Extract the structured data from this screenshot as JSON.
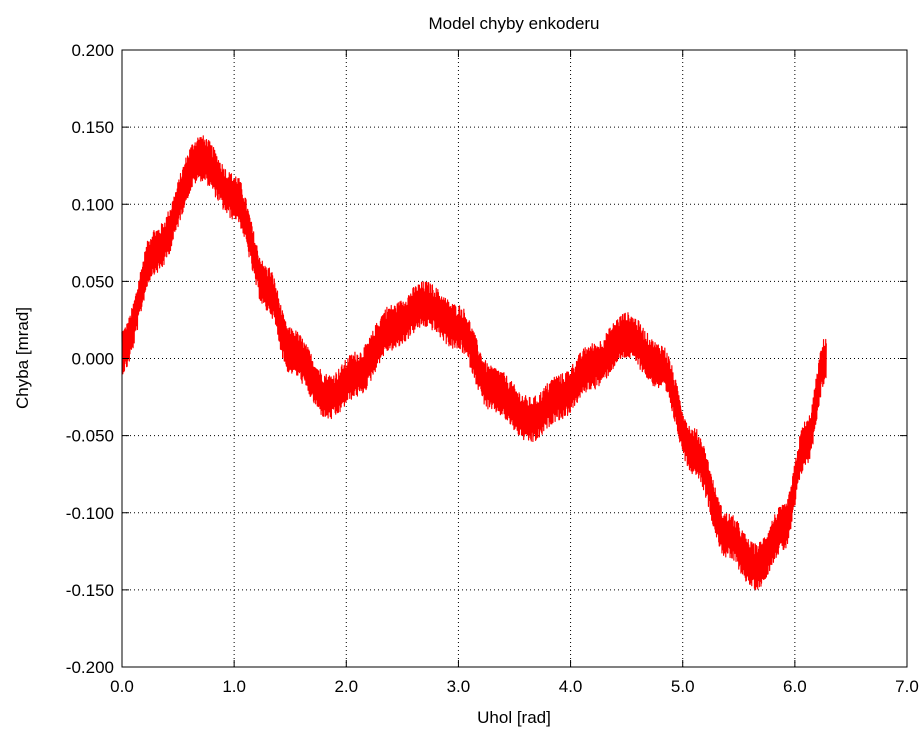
{
  "chart_data": {
    "type": "line",
    "title": "Model chyby enkoderu",
    "xlabel": "Uhol [rad]",
    "ylabel": "Chyba [mrad]",
    "xlim": [
      0,
      7
    ],
    "ylim": [
      -0.2,
      0.2
    ],
    "grid": true,
    "x_tick_labels": [
      "0.0",
      "1.0",
      "2.0",
      "3.0",
      "4.0",
      "5.0",
      "6.0",
      "7.0"
    ],
    "y_tick_labels": [
      "0.200",
      "0.150",
      "0.100",
      "0.050",
      "0.000",
      "-0.050",
      "-0.100",
      "-0.150",
      "-0.200"
    ],
    "series": [
      {
        "color": "#ff0000",
        "x": [
          0.0,
          0.3,
          0.7,
          1.0,
          1.3,
          1.5,
          1.85,
          2.1,
          2.4,
          2.7,
          3.0,
          3.3,
          3.65,
          3.9,
          4.2,
          4.5,
          4.8,
          5.1,
          5.4,
          5.65,
          5.9,
          6.1,
          6.28
        ],
        "y": [
          0.005,
          0.07,
          0.13,
          0.105,
          0.045,
          0.005,
          -0.025,
          -0.01,
          0.02,
          0.035,
          0.02,
          -0.02,
          -0.04,
          -0.025,
          -0.005,
          0.015,
          -0.005,
          -0.06,
          -0.115,
          -0.135,
          -0.11,
          -0.055,
          0.0
        ],
        "noise_amplitude": 0.015
      }
    ]
  }
}
